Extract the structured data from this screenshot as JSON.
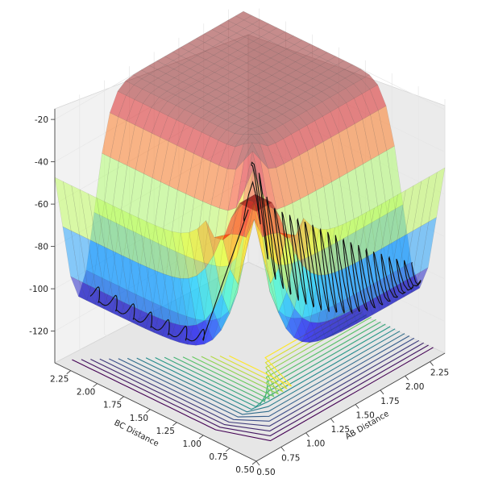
{
  "chart_data": {
    "type": "surface3d",
    "title": "",
    "xlabel": "AB Distance",
    "ylabel": "BC Distance",
    "zlabel": "",
    "x_ticks": [
      "0.50",
      "0.75",
      "1.00",
      "1.25",
      "1.50",
      "1.75",
      "2.00",
      "2.25"
    ],
    "y_ticks": [
      "0.50",
      "0.75",
      "1.00",
      "1.25",
      "1.50",
      "1.75",
      "2.00",
      "2.25"
    ],
    "z_ticks": [
      "-120",
      "-100",
      "-80",
      "-60",
      "-40",
      "-20"
    ],
    "xlim": [
      0.5,
      2.4
    ],
    "ylim": [
      0.5,
      2.4
    ],
    "zlim": [
      -135,
      -15
    ],
    "surface": {
      "plateau": -20,
      "well_depth": -110,
      "saddle": -70,
      "colormap": "jet",
      "alpha": 0.45
    },
    "contours": {
      "colormap": "viridis",
      "z_offset": -135,
      "levels": 18
    },
    "trajectory": {
      "color": "#111111",
      "description_points": [
        {
          "ab": 0.75,
          "bc": 2.3
        },
        {
          "ab": 0.9,
          "bc": 1.3
        },
        {
          "ab": 2.4,
          "bc": 0.75
        }
      ]
    },
    "grid": true,
    "legend": "none"
  }
}
